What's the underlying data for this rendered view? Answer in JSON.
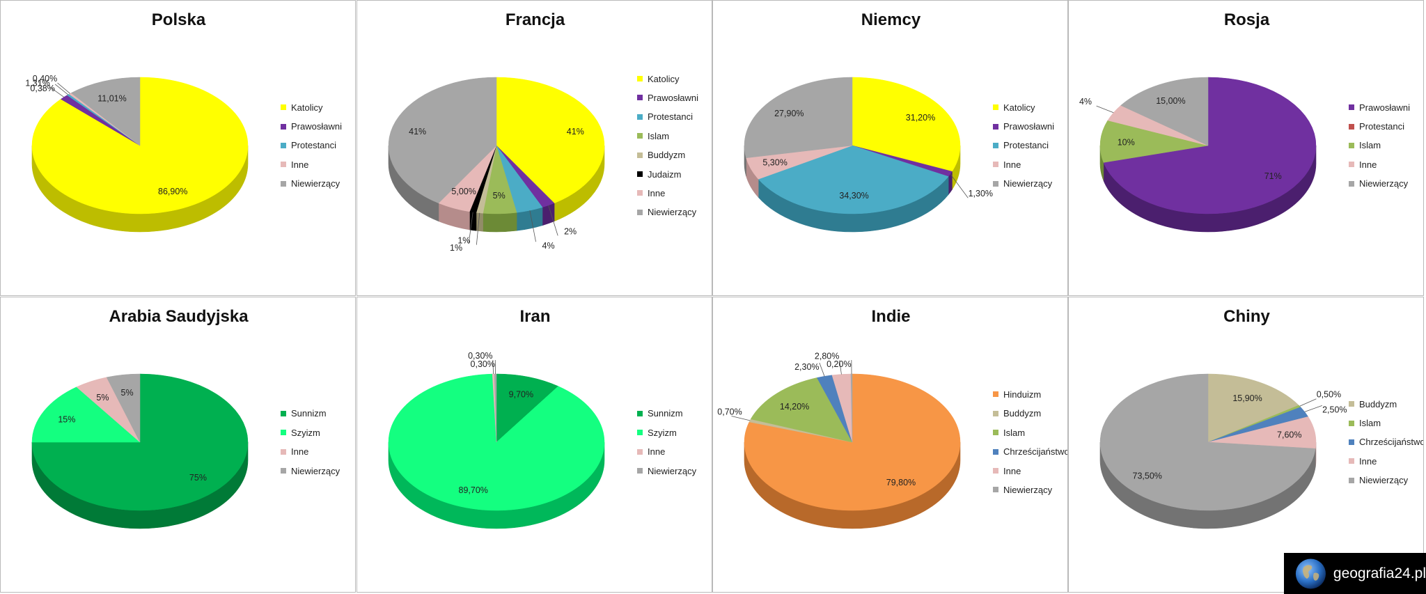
{
  "brand": {
    "text": "geografia24.pl",
    "icon": "globe-icon"
  },
  "chart_data": [
    {
      "type": "pie",
      "title": "Polska",
      "startAngle": 0,
      "slices": [
        {
          "name": "Katolicy",
          "value": 86.9,
          "label": "86,90%",
          "color": "#ffff00",
          "dark": "#bdbd00"
        },
        {
          "name": "Prawosławni",
          "value": 1.31,
          "label": "1,31%",
          "color": "#7030a0",
          "dark": "#4b1f6e"
        },
        {
          "name": "Protestanci",
          "value": 0.38,
          "label": "0,38%",
          "color": "#4bacc6",
          "dark": "#2f7c91"
        },
        {
          "name": "Inne",
          "value": 0.4,
          "label": "0,40%",
          "color": "#e6b9b8",
          "dark": "#b58c8b"
        },
        {
          "name": "Niewierzący",
          "value": 11.01,
          "label": "11,01%",
          "color": "#a6a6a6",
          "dark": "#737373"
        }
      ]
    },
    {
      "type": "pie",
      "title": "Francja",
      "startAngle": 0,
      "slices": [
        {
          "name": "Katolicy",
          "value": 41,
          "label": "41%",
          "color": "#ffff00",
          "dark": "#bdbd00"
        },
        {
          "name": "Prawosławni",
          "value": 2,
          "label": "2%",
          "color": "#7030a0",
          "dark": "#4b1f6e"
        },
        {
          "name": "Protestanci",
          "value": 4,
          "label": "4%",
          "color": "#4bacc6",
          "dark": "#2f7c91"
        },
        {
          "name": "Islam",
          "value": 5,
          "label": "5%",
          "color": "#9bbb59",
          "dark": "#6c8a36"
        },
        {
          "name": "Buddyzm",
          "value": 1,
          "label": "1%",
          "color": "#c4bd97",
          "dark": "#928c68"
        },
        {
          "name": "Judaizm",
          "value": 1,
          "label": "1%",
          "color": "#000000",
          "dark": "#000000"
        },
        {
          "name": "Inne",
          "value": 5,
          "label": "5,00%",
          "color": "#e6b9b8",
          "dark": "#b58c8b"
        },
        {
          "name": "Niewierzący",
          "value": 41,
          "label": "41%",
          "color": "#a6a6a6",
          "dark": "#737373"
        }
      ]
    },
    {
      "type": "pie",
      "title": "Niemcy",
      "startAngle": 0,
      "slices": [
        {
          "name": "Katolicy",
          "value": 31.2,
          "label": "31,20%",
          "color": "#ffff00",
          "dark": "#bdbd00"
        },
        {
          "name": "Prawosławni",
          "value": 1.3,
          "label": "1,30%",
          "color": "#7030a0",
          "dark": "#4b1f6e"
        },
        {
          "name": "Protestanci",
          "value": 34.3,
          "label": "34,30%",
          "color": "#4bacc6",
          "dark": "#2f7c91"
        },
        {
          "name": "Inne",
          "value": 5.3,
          "label": "5,30%",
          "color": "#e6b9b8",
          "dark": "#b58c8b"
        },
        {
          "name": "Niewierzący",
          "value": 27.9,
          "label": "27,90%",
          "color": "#a6a6a6",
          "dark": "#737373"
        }
      ]
    },
    {
      "type": "pie",
      "title": "Rosja",
      "startAngle": 0,
      "slices": [
        {
          "name": "Prawosławni",
          "value": 71,
          "label": "71%",
          "color": "#7030a0",
          "dark": "#4b1f6e"
        },
        {
          "name": "Protestanci",
          "value": 0,
          "label": "",
          "color": "#c0504d",
          "dark": "#8c3532"
        },
        {
          "name": "Islam",
          "value": 10,
          "label": "10%",
          "color": "#9bbb59",
          "dark": "#6c8a36"
        },
        {
          "name": "Inne",
          "value": 4,
          "label": "4%",
          "color": "#e6b9b8",
          "dark": "#b58c8b"
        },
        {
          "name": "Niewierzący",
          "value": 15,
          "label": "15,00%",
          "color": "#a6a6a6",
          "dark": "#737373"
        }
      ]
    },
    {
      "type": "pie",
      "title": "Arabia Saudyjska",
      "startAngle": 0,
      "slices": [
        {
          "name": "Sunnizm",
          "value": 75,
          "label": "75%",
          "color": "#00b050",
          "dark": "#007a37"
        },
        {
          "name": "Szyizm",
          "value": 15,
          "label": "15%",
          "color": "#14ff80",
          "dark": "#00b85a"
        },
        {
          "name": "Inne",
          "value": 5,
          "label": "5%",
          "color": "#e6b9b8",
          "dark": "#b58c8b"
        },
        {
          "name": "Niewierzący",
          "value": 5,
          "label": "5%",
          "color": "#a6a6a6",
          "dark": "#737373"
        }
      ]
    },
    {
      "type": "pie",
      "title": "Iran",
      "startAngle": 0,
      "slices": [
        {
          "name": "Sunnizm",
          "value": 9.7,
          "label": "9,70%",
          "color": "#00b050",
          "dark": "#007a37"
        },
        {
          "name": "Szyizm",
          "value": 89.7,
          "label": "89,70%",
          "color": "#14ff80",
          "dark": "#00b85a"
        },
        {
          "name": "Inne",
          "value": 0.3,
          "label": "0,30%",
          "color": "#e6b9b8",
          "dark": "#b58c8b"
        },
        {
          "name": "Niewierzący",
          "value": 0.3,
          "label": "0,30%",
          "color": "#a6a6a6",
          "dark": "#737373"
        }
      ]
    },
    {
      "type": "pie",
      "title": "Indie",
      "startAngle": 0,
      "slices": [
        {
          "name": "Hinduizm",
          "value": 79.8,
          "label": "79,80%",
          "color": "#f79646",
          "dark": "#b8692a"
        },
        {
          "name": "Buddyzm",
          "value": 0.7,
          "label": "0,70%",
          "color": "#c4bd97",
          "dark": "#928c68"
        },
        {
          "name": "Islam",
          "value": 14.2,
          "label": "14,20%",
          "color": "#9bbb59",
          "dark": "#6c8a36"
        },
        {
          "name": "Chrześcijaństwo",
          "value": 2.3,
          "label": "2,30%",
          "color": "#4f81bd",
          "dark": "#365b87"
        },
        {
          "name": "Inne",
          "value": 2.8,
          "label": "2,80%",
          "color": "#e6b9b8",
          "dark": "#b58c8b"
        },
        {
          "name": "Niewierzący",
          "value": 0.2,
          "label": "0,20%",
          "color": "#a6a6a6",
          "dark": "#737373"
        }
      ]
    },
    {
      "type": "pie",
      "title": "Chiny",
      "startAngle": 0,
      "slices": [
        {
          "name": "Buddyzm",
          "value": 15.9,
          "label": "15,90%",
          "color": "#c4bd97",
          "dark": "#928c68"
        },
        {
          "name": "Islam",
          "value": 0.5,
          "label": "0,50%",
          "color": "#9bbb59",
          "dark": "#6c8a36"
        },
        {
          "name": "Chrześcijaństwo",
          "value": 2.5,
          "label": "2,50%",
          "color": "#4f81bd",
          "dark": "#365b87"
        },
        {
          "name": "Inne",
          "value": 7.6,
          "label": "7,60%",
          "color": "#e6b9b8",
          "dark": "#b58c8b"
        },
        {
          "name": "Niewierzący",
          "value": 73.5,
          "label": "73,50%",
          "color": "#a6a6a6",
          "dark": "#737373"
        }
      ]
    }
  ]
}
